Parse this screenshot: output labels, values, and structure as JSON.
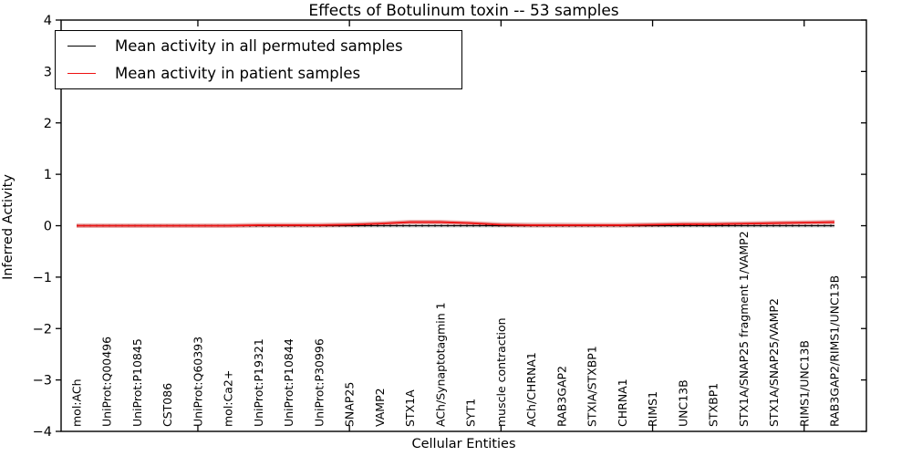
{
  "title": "Effects of Botulinum toxin -- 53 samples",
  "chart_data": {
    "type": "line",
    "title": "Effects of Botulinum toxin -- 53 samples",
    "xlabel": "Cellular Entities",
    "ylabel": "Inferred Activity",
    "ylim": [
      -4,
      4
    ],
    "yticks": [
      4,
      3,
      2,
      1,
      0,
      -1,
      -2,
      -3,
      -4
    ],
    "grid": false,
    "legend_position": "upper left",
    "x_major_tick_categories": [
      5,
      10,
      15,
      20,
      25
    ],
    "categories": [
      "mol:ACh",
      "UniProt:Q00496",
      "UniProt:P10845",
      "CST086",
      "UniProt:Q60393",
      "mol:Ca2+",
      "UniProt:P19321",
      "UniProt:P10844",
      "UniProt:P30996",
      "SNAP25",
      "VAMP2",
      "STX1A",
      "ACh/Synaptotagmin 1",
      "SYT1",
      "muscle contraction",
      "ACh/CHRNA1",
      "RAB3GAP2",
      "STXIA/STXBP1",
      "CHRNA1",
      "RIMS1",
      "UNC13B",
      "STXBP1",
      "STX1A/SNAP25 fragment 1/VAMP2",
      "STX1A/SNAP25/VAMP2",
      "RIMS1/UNC13B",
      "RAB3GAP2/RIMS1/UNC13B"
    ],
    "series": [
      {
        "name": "Mean activity in all permuted samples",
        "color": "#000000",
        "style": "solid",
        "values": [
          0,
          0,
          0,
          0,
          0,
          0,
          0,
          0,
          0,
          0,
          0,
          0,
          0,
          0,
          0,
          0,
          0,
          0,
          0,
          0,
          0,
          0,
          0,
          0,
          0,
          0
        ]
      },
      {
        "name": "Mean activity in patient samples",
        "color": "#ee1111",
        "style": "solid",
        "values": [
          0,
          0,
          0,
          0,
          0,
          0,
          0.01,
          0.01,
          0.01,
          0.02,
          0.04,
          0.07,
          0.07,
          0.05,
          0.02,
          0.01,
          0.01,
          0.01,
          0.01,
          0.02,
          0.03,
          0.03,
          0.04,
          0.05,
          0.06,
          0.07
        ]
      }
    ],
    "baseline": {
      "value": 0,
      "style": "dotted",
      "color": "#000000"
    },
    "band": {
      "color": "#d9d9d9",
      "upper": [
        0.04,
        0.04,
        0.04,
        0.04,
        0.04,
        0.04,
        0.05,
        0.05,
        0.05,
        0.06,
        0.08,
        0.11,
        0.11,
        0.08,
        0.06,
        0.06,
        0.06,
        0.05,
        0.05,
        0.06,
        0.07,
        0.07,
        0.08,
        0.09,
        0.1,
        0.11
      ],
      "lower": [
        -0.04,
        -0.04,
        -0.04,
        -0.04,
        -0.04,
        -0.04,
        -0.04,
        -0.04,
        -0.04,
        -0.04,
        -0.04,
        -0.04,
        -0.04,
        -0.04,
        -0.04,
        -0.04,
        -0.04,
        -0.04,
        -0.04,
        -0.04,
        -0.04,
        -0.04,
        -0.04,
        -0.04,
        -0.04,
        -0.04
      ]
    }
  }
}
